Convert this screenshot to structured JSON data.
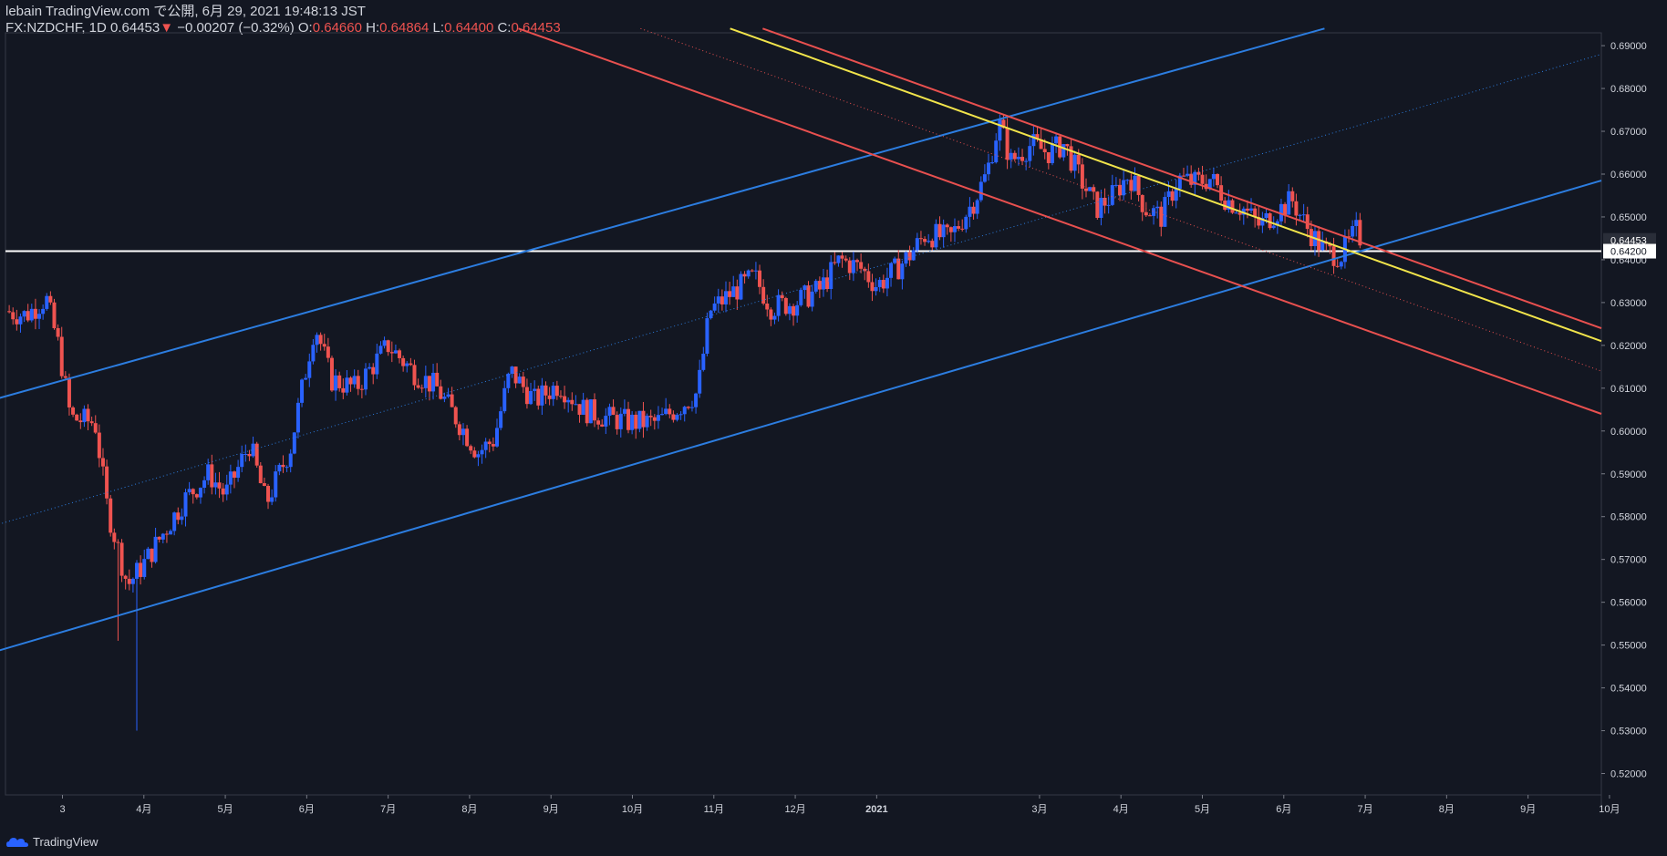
{
  "header": {
    "publisher": "lebain TradingView.com で公開, 6月 29, 2021 19:48:13 JST",
    "symbol": "FX:NZDCHF, 1D",
    "last": "0.64453",
    "change": "−0.00207 (−0.32%)",
    "o_label": "O:",
    "o_value": "0.64660",
    "h_label": "H:",
    "h_value": "0.64864",
    "l_label": "L:",
    "l_value": "0.64400",
    "c_label": "C:",
    "c_value": "0.64453"
  },
  "footer": {
    "brand": "TradingView"
  },
  "colors": {
    "background": "#131722",
    "up": "#2962ff",
    "down": "#ef5350",
    "blue_line": "#2c7de0",
    "red_line": "#e8504f",
    "yellow_line": "#f1e44b",
    "horizontal": "#ffffff",
    "grid_text": "#d1d4dc"
  },
  "chart_data": {
    "type": "candlestick",
    "symbol": "FX:NZDCHF",
    "interval": "1D",
    "ylim": [
      0.515,
      0.693
    ],
    "x_range_months": [
      0.3,
      19.9
    ],
    "y_ticks": [
      "0.69000",
      "0.68000",
      "0.67000",
      "0.66000",
      "0.65000",
      "0.64000",
      "0.63000",
      "0.62000",
      "0.61000",
      "0.60000",
      "0.59000",
      "0.58000",
      "0.57000",
      "0.56000",
      "0.55000",
      "0.54000",
      "0.53000",
      "0.52000"
    ],
    "current_price_label": "0.64453",
    "horizontal_level_label": "0.64200",
    "horizontal_level": 0.642,
    "x_ticks": [
      {
        "label": "3",
        "m": 1
      },
      {
        "label": "4月",
        "m": 2
      },
      {
        "label": "5月",
        "m": 3
      },
      {
        "label": "6月",
        "m": 4
      },
      {
        "label": "7月",
        "m": 5
      },
      {
        "label": "8月",
        "m": 6
      },
      {
        "label": "9月",
        "m": 7
      },
      {
        "label": "10月",
        "m": 8
      },
      {
        "label": "11月",
        "m": 9
      },
      {
        "label": "12月",
        "m": 10
      },
      {
        "label": "2021",
        "m": 11
      },
      {
        "label": "3月",
        "m": 13
      },
      {
        "label": "4月",
        "m": 14
      },
      {
        "label": "5月",
        "m": 15
      },
      {
        "label": "6月",
        "m": 16
      },
      {
        "label": "7月",
        "m": 17
      },
      {
        "label": "8月",
        "m": 18
      },
      {
        "label": "9月",
        "m": 19
      },
      {
        "label": "10月",
        "m": 20
      }
    ],
    "price_path": [
      [
        0.3,
        0.628
      ],
      [
        0.55,
        0.627
      ],
      [
        0.8,
        0.631
      ],
      [
        0.95,
        0.62
      ],
      [
        1.1,
        0.603
      ],
      [
        1.4,
        0.602
      ],
      [
        1.55,
        0.582
      ],
      [
        1.8,
        0.564
      ],
      [
        2.0,
        0.569
      ],
      [
        2.3,
        0.578
      ],
      [
        2.5,
        0.584
      ],
      [
        2.8,
        0.59
      ],
      [
        3.0,
        0.585
      ],
      [
        3.3,
        0.597
      ],
      [
        3.5,
        0.583
      ],
      [
        3.8,
        0.596
      ],
      [
        4.1,
        0.625
      ],
      [
        4.3,
        0.612
      ],
      [
        4.6,
        0.61
      ],
      [
        5.0,
        0.62
      ],
      [
        5.3,
        0.614
      ],
      [
        5.6,
        0.61
      ],
      [
        5.9,
        0.601
      ],
      [
        6.1,
        0.595
      ],
      [
        6.3,
        0.598
      ],
      [
        6.5,
        0.614
      ],
      [
        6.8,
        0.607
      ],
      [
        7.1,
        0.611
      ],
      [
        7.4,
        0.605
      ],
      [
        7.7,
        0.603
      ],
      [
        8.0,
        0.602
      ],
      [
        8.3,
        0.602
      ],
      [
        8.6,
        0.606
      ],
      [
        8.8,
        0.609
      ],
      [
        8.95,
        0.628
      ],
      [
        9.2,
        0.632
      ],
      [
        9.5,
        0.636
      ],
      [
        9.7,
        0.629
      ],
      [
        10.0,
        0.63
      ],
      [
        10.3,
        0.633
      ],
      [
        10.55,
        0.64
      ],
      [
        10.8,
        0.638
      ],
      [
        11.0,
        0.634
      ],
      [
        11.2,
        0.637
      ],
      [
        11.4,
        0.641
      ],
      [
        11.6,
        0.646
      ],
      [
        11.9,
        0.645
      ],
      [
        12.2,
        0.654
      ],
      [
        12.35,
        0.66
      ],
      [
        12.5,
        0.672
      ],
      [
        12.65,
        0.663
      ],
      [
        12.9,
        0.667
      ],
      [
        13.1,
        0.665
      ],
      [
        13.3,
        0.667
      ],
      [
        13.5,
        0.659
      ],
      [
        13.7,
        0.652
      ],
      [
        13.9,
        0.655
      ],
      [
        14.1,
        0.66
      ],
      [
        14.3,
        0.652
      ],
      [
        14.5,
        0.65
      ],
      [
        14.7,
        0.659
      ],
      [
        14.9,
        0.658
      ],
      [
        15.1,
        0.659
      ],
      [
        15.3,
        0.654
      ],
      [
        15.5,
        0.652
      ],
      [
        15.7,
        0.648
      ],
      [
        15.9,
        0.651
      ],
      [
        16.1,
        0.654
      ],
      [
        16.3,
        0.647
      ],
      [
        16.5,
        0.642
      ],
      [
        16.7,
        0.641
      ],
      [
        16.9,
        0.647
      ],
      [
        16.95,
        0.6445
      ]
    ],
    "events": [
      {
        "m": 1.7,
        "low": 0.551
      },
      {
        "m": 1.9,
        "low": 0.53
      }
    ],
    "trendlines": [
      {
        "color": "blue",
        "style": "solid",
        "p1": [
          0.0,
          0.6065
        ],
        "p2": [
          16.5,
          0.694
        ]
      },
      {
        "color": "blue",
        "style": "solid",
        "p1": [
          0.0,
          0.5475
        ],
        "p2": [
          19.9,
          0.6585
        ]
      },
      {
        "color": "blue",
        "style": "dotted",
        "p1": [
          0.0,
          0.577
        ],
        "p2": [
          19.9,
          0.688
        ]
      },
      {
        "color": "red",
        "style": "solid",
        "p1": [
          6.6,
          0.694
        ],
        "p2": [
          19.9,
          0.604
        ]
      },
      {
        "color": "red",
        "style": "dotted",
        "p1": [
          8.1,
          0.694
        ],
        "p2": [
          19.9,
          0.614
        ]
      },
      {
        "color": "red",
        "style": "solid",
        "p1": [
          9.6,
          0.694
        ],
        "p2": [
          19.9,
          0.624
        ]
      },
      {
        "color": "yellow",
        "style": "solid",
        "p1": [
          9.2,
          0.694
        ],
        "p2": [
          19.9,
          0.621
        ]
      }
    ]
  }
}
